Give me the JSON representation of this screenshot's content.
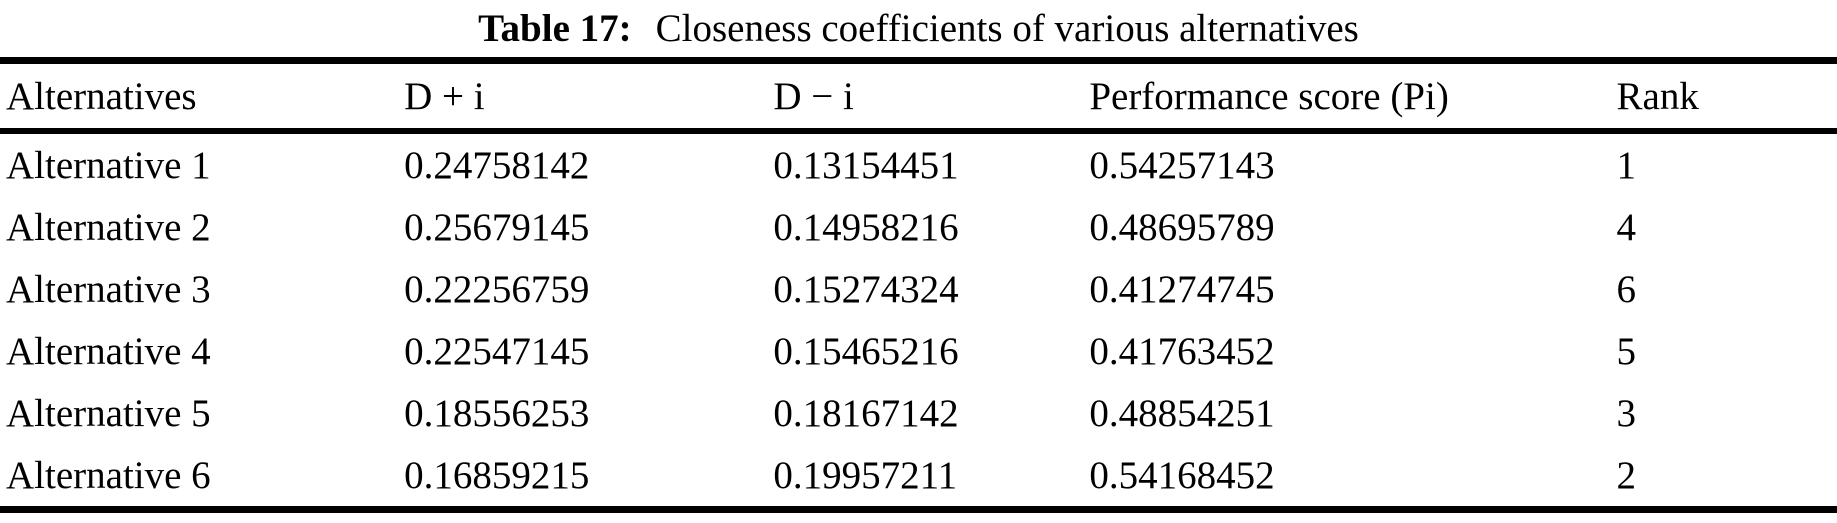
{
  "title": {
    "label": "Table 17:",
    "text": "Closeness coefficients of various alternatives"
  },
  "table": {
    "columns": [
      "Alternatives",
      "D + i",
      "D − i",
      "Performance score (Pi)",
      "Rank"
    ],
    "rows": [
      [
        "Alternative 1",
        "0.24758142",
        "0.13154451",
        "0.54257143",
        "1"
      ],
      [
        "Alternative 2",
        "0.25679145",
        "0.14958216",
        "0.48695789",
        "4"
      ],
      [
        "Alternative 3",
        "0.22256759",
        "0.15274324",
        "0.41274745",
        "6"
      ],
      [
        "Alternative 4",
        "0.22547145",
        "0.15465216",
        "0.41763452",
        "5"
      ],
      [
        "Alternative 5",
        "0.18556253",
        "0.18167142",
        "0.48854251",
        "3"
      ],
      [
        "Alternative 6",
        "0.16859215",
        "0.19957211",
        "0.54168452",
        "2"
      ]
    ]
  },
  "colors": {
    "text": "#000000",
    "background": "#ffffff",
    "rule": "#000000"
  }
}
